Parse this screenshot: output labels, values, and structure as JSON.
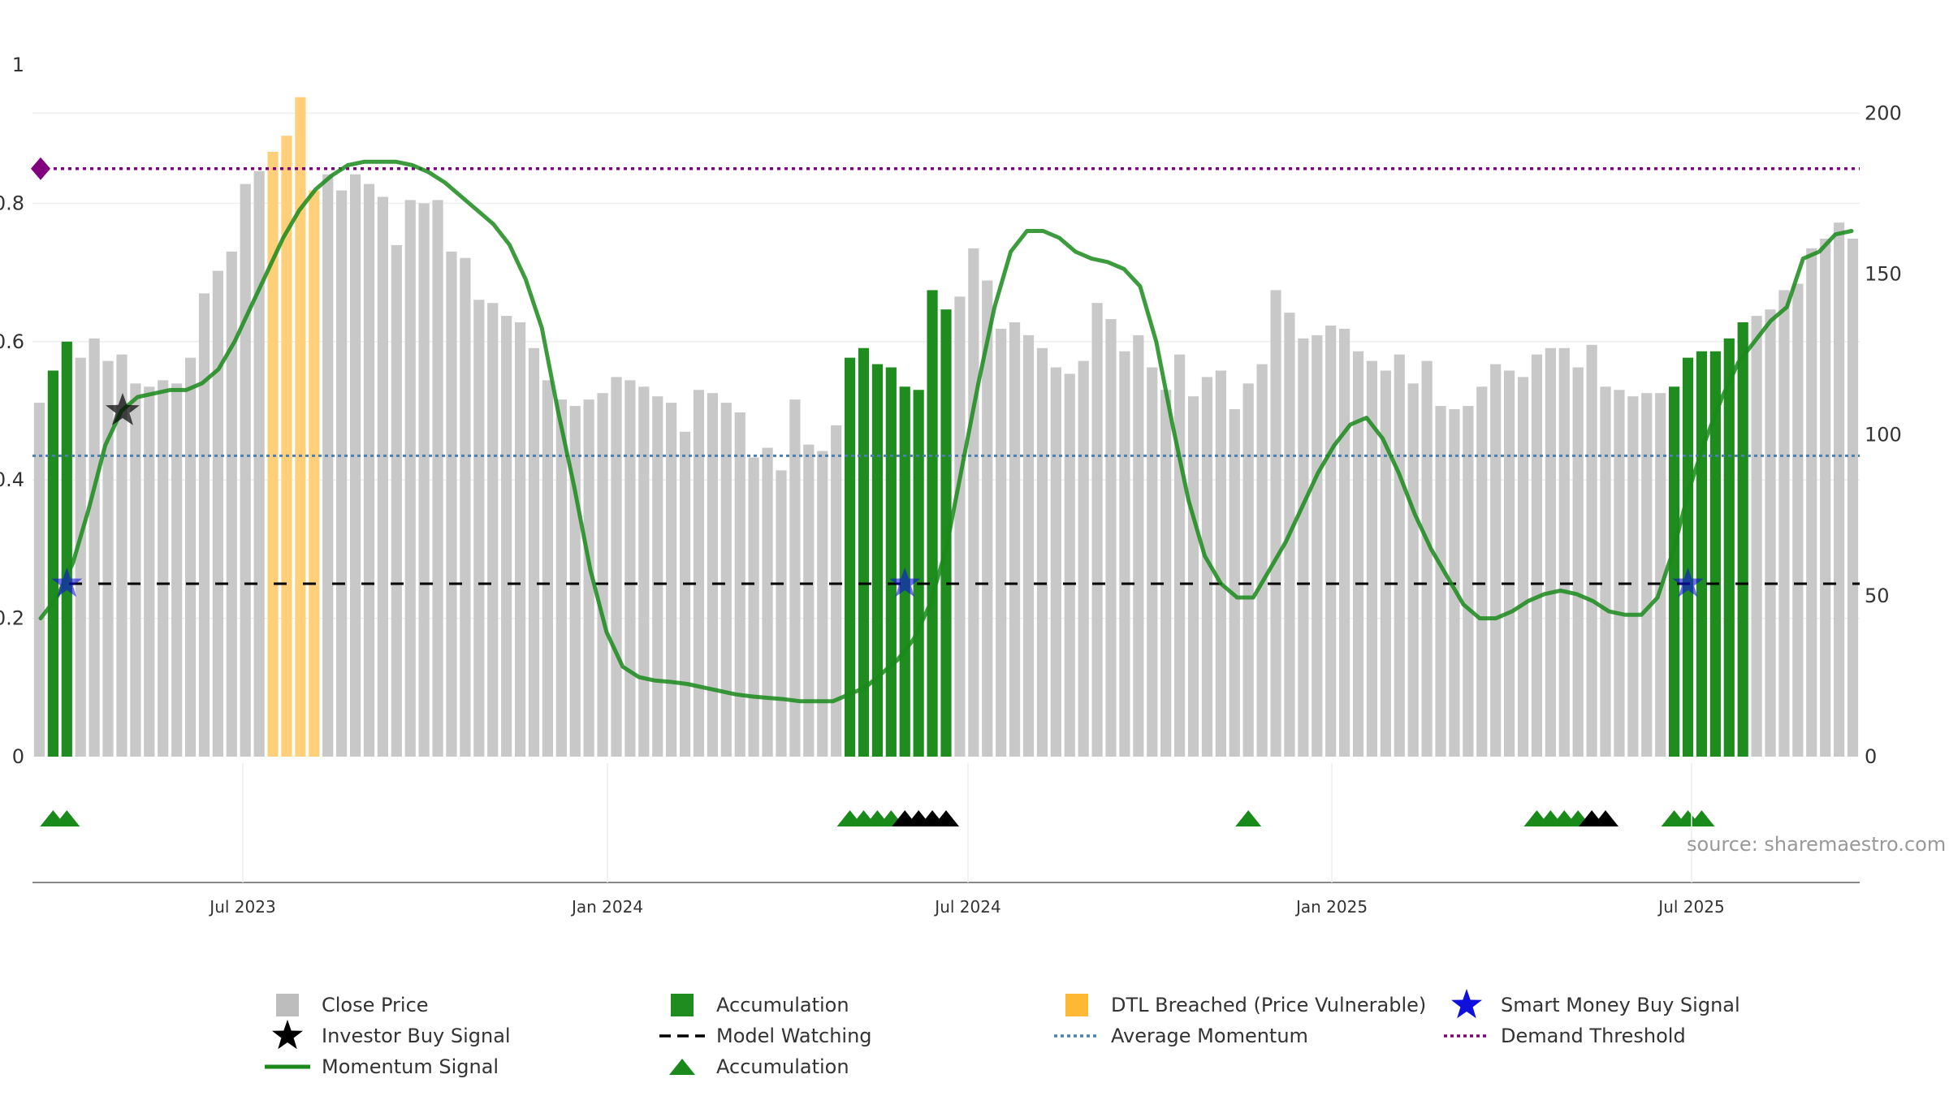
{
  "chart_data": {
    "type": "bar",
    "source_note": "source: sharemaestro.com",
    "x_ticks": [
      "Jul 2023",
      "Jan 2024",
      "Jul 2024",
      "Jan 2025",
      "Jul 2025"
    ],
    "left_axis": {
      "ticks": [
        "0",
        "0.2",
        "0.4",
        "0.6",
        "0.8",
        "1"
      ],
      "ylim": [
        0,
        1
      ]
    },
    "right_axis": {
      "ticks": [
        "0",
        "50",
        "100",
        "150",
        "200"
      ],
      "ylim": [
        0,
        215
      ]
    },
    "reference_lines": {
      "demand_threshold": 0.85,
      "average_momentum": 0.435,
      "model_watching": 0.25
    },
    "close_price": [
      110,
      120,
      129,
      124,
      130,
      123,
      125,
      116,
      115,
      117,
      116,
      124,
      144,
      151,
      157,
      178,
      182,
      188,
      193,
      205,
      176,
      181,
      176,
      181,
      178,
      174,
      159,
      173,
      172,
      173,
      157,
      155,
      142,
      141,
      137,
      135,
      127,
      117,
      111,
      109,
      111,
      113,
      118,
      117,
      115,
      112,
      110,
      101,
      114,
      113,
      110,
      107,
      93,
      96,
      89,
      111,
      97,
      95,
      103,
      124,
      127,
      122,
      121,
      115,
      114,
      145,
      139,
      143,
      158,
      148,
      133,
      135,
      131,
      127,
      121,
      119,
      123,
      141,
      136,
      126,
      131,
      121,
      114,
      125,
      112,
      118,
      120,
      108,
      116,
      122,
      145,
      138,
      130,
      131,
      134,
      133,
      126,
      123,
      120,
      125,
      116,
      123,
      109,
      108,
      109,
      115,
      122,
      120,
      118,
      125,
      127,
      127,
      121,
      128,
      115,
      114,
      112,
      113,
      113,
      115,
      124,
      126,
      126,
      130,
      135,
      137,
      139,
      145,
      147,
      158,
      161,
      166,
      161
    ],
    "series_kinds": [
      "g",
      "a",
      "a",
      "g",
      "g",
      "g",
      "g",
      "g",
      "g",
      "g",
      "g",
      "g",
      "g",
      "g",
      "g",
      "g",
      "g",
      "d",
      "d",
      "d",
      "d",
      "g",
      "g",
      "g",
      "g",
      "g",
      "g",
      "g",
      "g",
      "g",
      "g",
      "g",
      "g",
      "g",
      "g",
      "g",
      "g",
      "g",
      "g",
      "g",
      "g",
      "g",
      "g",
      "g",
      "g",
      "g",
      "g",
      "g",
      "g",
      "g",
      "g",
      "g",
      "g",
      "g",
      "g",
      "g",
      "g",
      "g",
      "g",
      "a",
      "a",
      "a",
      "a",
      "a",
      "a",
      "a",
      "a",
      "g",
      "g",
      "g",
      "g",
      "g",
      "g",
      "g",
      "g",
      "g",
      "g",
      "g",
      "g",
      "g",
      "g",
      "g",
      "g",
      "g",
      "g",
      "g",
      "g",
      "g",
      "g",
      "g",
      "g",
      "g",
      "g",
      "g",
      "g",
      "g",
      "g",
      "g",
      "g",
      "g",
      "g",
      "g",
      "g",
      "g",
      "g",
      "g",
      "g",
      "g",
      "g",
      "g",
      "g",
      "g",
      "g",
      "g",
      "g",
      "g",
      "g",
      "g",
      "g",
      "a",
      "a",
      "a",
      "a",
      "a",
      "a",
      "g",
      "g",
      "g",
      "g",
      "g",
      "g",
      "g",
      "g",
      "g",
      "g",
      "g",
      "g"
    ],
    "momentum_signal": [
      0.2,
      0.23,
      0.28,
      0.36,
      0.45,
      0.5,
      0.52,
      0.525,
      0.53,
      0.53,
      0.54,
      0.56,
      0.6,
      0.65,
      0.7,
      0.75,
      0.79,
      0.82,
      0.84,
      0.855,
      0.86,
      0.86,
      0.86,
      0.855,
      0.845,
      0.83,
      0.81,
      0.79,
      0.77,
      0.74,
      0.69,
      0.62,
      0.5,
      0.39,
      0.27,
      0.18,
      0.13,
      0.115,
      0.11,
      0.108,
      0.105,
      0.1,
      0.095,
      0.09,
      0.087,
      0.085,
      0.083,
      0.08,
      0.08,
      0.08,
      0.09,
      0.1,
      0.12,
      0.14,
      0.17,
      0.22,
      0.3,
      0.42,
      0.54,
      0.65,
      0.73,
      0.76,
      0.76,
      0.75,
      0.73,
      0.72,
      0.715,
      0.705,
      0.68,
      0.6,
      0.48,
      0.37,
      0.29,
      0.25,
      0.23,
      0.23,
      0.27,
      0.31,
      0.36,
      0.41,
      0.45,
      0.48,
      0.49,
      0.46,
      0.41,
      0.35,
      0.3,
      0.26,
      0.22,
      0.2,
      0.2,
      0.21,
      0.225,
      0.235,
      0.24,
      0.235,
      0.225,
      0.21,
      0.205,
      0.205,
      0.23,
      0.3,
      0.39,
      0.46,
      0.52,
      0.57,
      0.6,
      0.63,
      0.65,
      0.72,
      0.73,
      0.755,
      0.76
    ],
    "investor_buy_signals": [
      {
        "index": 6,
        "value": 0.5
      }
    ],
    "smart_money_buy_signals": [
      {
        "index": 2,
        "value": 0.25
      },
      {
        "index": 63,
        "value": 0.25
      },
      {
        "index": 120,
        "value": 0.25
      }
    ],
    "accumulation_markers": [
      {
        "index": 1,
        "color": "green"
      },
      {
        "index": 2,
        "color": "green"
      },
      {
        "index": 59,
        "color": "green"
      },
      {
        "index": 60,
        "color": "green"
      },
      {
        "index": 61,
        "color": "green"
      },
      {
        "index": 62,
        "color": "green"
      },
      {
        "index": 63,
        "color": "black"
      },
      {
        "index": 64,
        "color": "black"
      },
      {
        "index": 65,
        "color": "black"
      },
      {
        "index": 66,
        "color": "black"
      },
      {
        "index": 88,
        "color": "green"
      },
      {
        "index": 109,
        "color": "green"
      },
      {
        "index": 110,
        "color": "green"
      },
      {
        "index": 111,
        "color": "green"
      },
      {
        "index": 112,
        "color": "green"
      },
      {
        "index": 113,
        "color": "black"
      },
      {
        "index": 114,
        "color": "black"
      },
      {
        "index": 119,
        "color": "green"
      },
      {
        "index": 120,
        "color": "green"
      },
      {
        "index": 121,
        "color": "green"
      }
    ],
    "legend": [
      {
        "key": "close",
        "label": "Close Price",
        "swatch": "square",
        "color": "#bdbdbd"
      },
      {
        "key": "acc_bar",
        "label": "Accumulation",
        "swatch": "square",
        "color": "#1e8c1e"
      },
      {
        "key": "dtl",
        "label": "DTL Breached (Price Vulnerable)",
        "swatch": "square",
        "color": "#ffb833"
      },
      {
        "key": "smart",
        "label": "Smart Money Buy Signal",
        "swatch": "star",
        "color": "#1010dd"
      },
      {
        "key": "investor",
        "label": "Investor Buy Signal",
        "swatch": "star",
        "color": "#000000"
      },
      {
        "key": "watching",
        "label": "Model Watching",
        "swatch": "dash",
        "color": "#000000"
      },
      {
        "key": "avg",
        "label": "Average Momentum",
        "swatch": "dot",
        "color": "#4a7fb0"
      },
      {
        "key": "demand",
        "label": "Demand Threshold",
        "swatch": "dot",
        "color": "#800080"
      },
      {
        "key": "momentum",
        "label": "Momentum Signal",
        "swatch": "line",
        "color": "#1a8a1a"
      },
      {
        "key": "acc_tri",
        "label": "Accumulation",
        "swatch": "triangle",
        "color": "#1a8a1a"
      }
    ],
    "colors": {
      "close": "#c8c8c8",
      "accumulation": "#1e8c1e",
      "dtl": "#ffcf7a",
      "momentum": "#1a8a1a",
      "grid": "#eeeeee"
    }
  }
}
